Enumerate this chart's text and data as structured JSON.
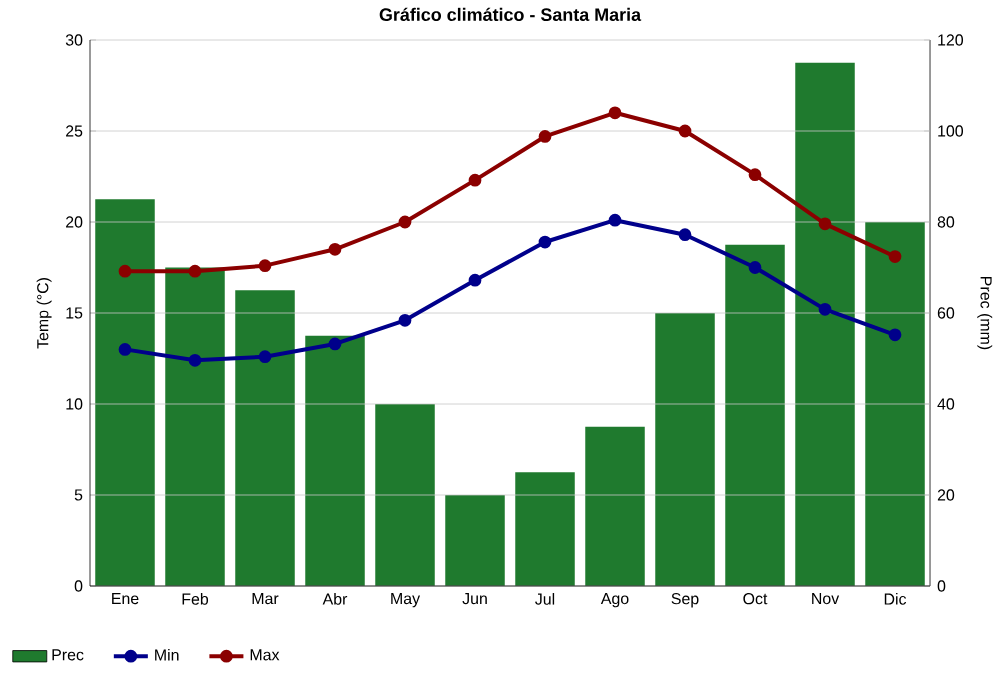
{
  "chart_data": {
    "type": "bar",
    "title": "Gráfico climático - Santa Maria",
    "ylabel": "Temp (°C)",
    "y2label": "Prec (mm)",
    "categories": [
      "Ene",
      "Feb",
      "Mar",
      "Abr",
      "May",
      "Jun",
      "Jul",
      "Ago",
      "Sep",
      "Oct",
      "Nov",
      "Dic"
    ],
    "series": [
      {
        "name": "Prec",
        "axis": "y2",
        "color": "#1f7a2e",
        "values": [
          85,
          70,
          65,
          55,
          40,
          20,
          25,
          35,
          60,
          75,
          115,
          80
        ]
      },
      {
        "name": "Min",
        "type": "line",
        "color": "#00008b",
        "values": [
          13.0,
          12.4,
          12.6,
          13.3,
          14.6,
          16.8,
          18.9,
          20.1,
          19.3,
          17.5,
          15.2,
          13.8
        ]
      },
      {
        "name": "Max",
        "type": "line",
        "color": "#8b0000",
        "values": [
          17.3,
          17.3,
          17.6,
          18.5,
          20.0,
          22.3,
          24.7,
          26.0,
          25.0,
          22.6,
          19.9,
          18.1
        ]
      }
    ],
    "ylim": [
      0,
      30
    ],
    "yticks": [
      0,
      5,
      10,
      15,
      20,
      25,
      30
    ],
    "y2lim": [
      0,
      120
    ],
    "y2ticks": [
      0,
      20,
      40,
      60,
      80,
      100,
      120
    ],
    "grid": "y",
    "legend": "bottom left",
    "marker": "circle"
  }
}
